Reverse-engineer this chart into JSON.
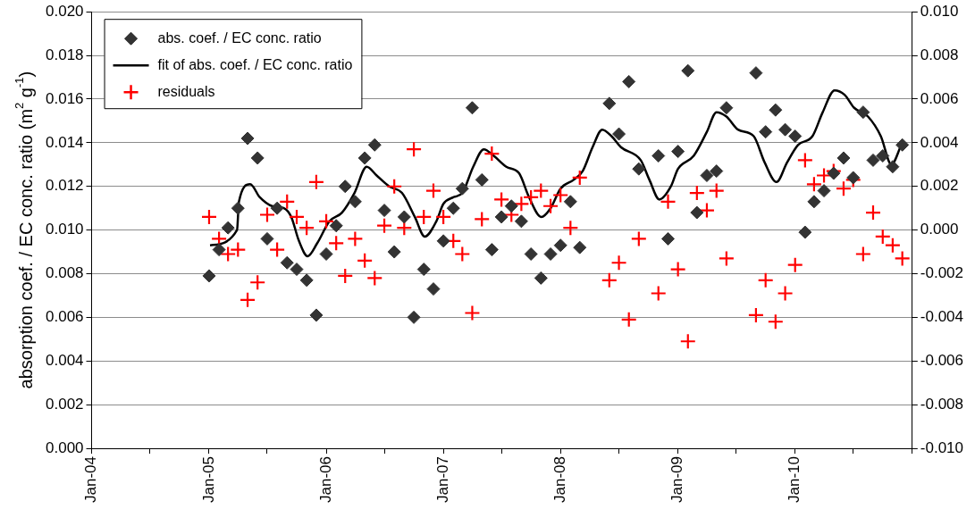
{
  "chart_data": {
    "type": "scatter",
    "ylabel": "absorption coef. / EC conc. ratio (m$^{2}$ g$^{-1}$)",
    "grid": "y",
    "legend": "top left",
    "xlim": [
      "2004-01",
      "2011-01"
    ],
    "xticks": [
      {
        "value": "2004-01",
        "label": "Jan-04"
      },
      {
        "value": "2004-07",
        "label": null
      },
      {
        "value": "2005-01",
        "label": "Jan-05"
      },
      {
        "value": "2005-07",
        "label": null
      },
      {
        "value": "2006-01",
        "label": "Jan-06"
      },
      {
        "value": "2006-07",
        "label": null
      },
      {
        "value": "2007-01",
        "label": "Jan-07"
      },
      {
        "value": "2007-07",
        "label": null
      },
      {
        "value": "2008-01",
        "label": "Jan-08"
      },
      {
        "value": "2008-07",
        "label": null
      },
      {
        "value": "2009-01",
        "label": "Jan-09"
      },
      {
        "value": "2009-07",
        "label": null
      },
      {
        "value": "2010-01",
        "label": "Jan-10"
      },
      {
        "value": "2010-07",
        "label": null
      },
      {
        "value": "2011-01",
        "label": null
      }
    ],
    "ylim": [
      0,
      0.02
    ],
    "yticks": [
      {
        "value": 0,
        "label": "0.000"
      },
      {
        "value": 0.002,
        "label": "0.002"
      },
      {
        "value": 0.004,
        "label": "0.004"
      },
      {
        "value": 0.006,
        "label": "0.006"
      },
      {
        "value": 0.008,
        "label": "0.008"
      },
      {
        "value": 0.01,
        "label": "0.010"
      },
      {
        "value": 0.012,
        "label": "0.012"
      },
      {
        "value": 0.014,
        "label": "0.014"
      },
      {
        "value": 0.016,
        "label": "0.016"
      },
      {
        "value": 0.018,
        "label": "0.018"
      },
      {
        "value": 0.02,
        "label": "0.020"
      }
    ],
    "y2lim": [
      -0.01,
      0.01
    ],
    "y2ticks": [
      {
        "value": -0.01,
        "label": "-0.010"
      },
      {
        "value": -0.008,
        "label": "-0.008"
      },
      {
        "value": -0.006,
        "label": "-0.006"
      },
      {
        "value": -0.004,
        "label": "-0.004"
      },
      {
        "value": -0.002,
        "label": "-0.002"
      },
      {
        "value": 0,
        "label": "0.000"
      },
      {
        "value": 0.002,
        "label": "0.002"
      },
      {
        "value": 0.004,
        "label": "0.004"
      },
      {
        "value": 0.006,
        "label": "0.006"
      },
      {
        "value": 0.008,
        "label": "0.008"
      },
      {
        "value": 0.01,
        "label": "0.010"
      }
    ],
    "x": [
      "2005-01",
      "2005-02",
      "2005-03",
      "2005-04",
      "2005-05",
      "2005-06",
      "2005-07",
      "2005-08",
      "2005-09",
      "2005-10",
      "2005-11",
      "2005-12",
      "2006-01",
      "2006-02",
      "2006-03",
      "2006-04",
      "2006-05",
      "2006-06",
      "2006-07",
      "2006-08",
      "2006-09",
      "2006-10",
      "2006-11",
      "2006-12",
      "2007-01",
      "2007-02",
      "2007-03",
      "2007-04",
      "2007-05",
      "2007-06",
      "2007-07",
      "2007-08",
      "2007-09",
      "2007-10",
      "2007-11",
      "2007-12",
      "2008-01",
      "2008-02",
      "2008-03",
      "2008-06",
      "2008-07",
      "2008-08",
      "2008-09",
      "2008-11",
      "2008-12",
      "2009-01",
      "2009-02",
      "2009-03",
      "2009-04",
      "2009-05",
      "2009-06",
      "2009-09",
      "2009-10",
      "2009-11",
      "2009-12",
      "2010-01",
      "2010-02",
      "2010-03",
      "2010-04",
      "2010-05",
      "2010-06",
      "2010-07",
      "2010-08",
      "2010-09",
      "2010-10",
      "2010-11",
      "2010-12"
    ],
    "series": [
      {
        "name": "abs. coef. / EC conc. ratio",
        "type": "scatter",
        "marker": "diamond",
        "color": "#333333",
        "values": [
          0.0079,
          0.0091,
          0.0101,
          0.011,
          0.0142,
          0.0133,
          0.0096,
          0.011,
          0.0085,
          0.0082,
          0.0077,
          0.0061,
          0.0089,
          0.0102,
          0.012,
          0.0113,
          0.0133,
          0.0139,
          0.0109,
          0.009,
          0.0106,
          0.006,
          0.0082,
          0.0073,
          0.0095,
          0.011,
          0.0119,
          0.0156,
          0.0123,
          0.0091,
          0.0106,
          0.0111,
          0.0104,
          0.0089,
          0.0078,
          0.0089,
          0.0093,
          0.0113,
          0.0092,
          0.0158,
          0.0144,
          0.0168,
          0.0128,
          0.0134,
          0.0096,
          0.0136,
          0.0173,
          0.0108,
          0.0125,
          0.0127,
          0.0156,
          0.0172,
          0.0145,
          0.0155,
          0.0146,
          0.0143,
          0.0099,
          0.0113,
          0.0118,
          0.0126,
          0.0133,
          0.0124,
          0.0154,
          0.0132,
          0.0134,
          0.0129,
          0.0139
        ]
      },
      {
        "name": "fit of abs. coef. / EC conc. ratio",
        "type": "line",
        "marker": "none",
        "line_style": "solid",
        "color": "#000000",
        "x": [
          "2005-01-04",
          "2005-03-29",
          "2005-04-04",
          "2005-05-09",
          "2005-06-08",
          "2005-07-16",
          "2005-08-22",
          "2005-09-14",
          "2005-10-08",
          "2005-11-04",
          "2005-12-04",
          "2006-01-11",
          "2006-02-19",
          "2006-03-30",
          "2006-05-07",
          "2006-06-07",
          "2006-07-16",
          "2006-08-25",
          "2006-10-04",
          "2006-11-04",
          "2006-12-10",
          "2007-01-01",
          "2007-02-01",
          "2007-03-01",
          "2007-04-04",
          "2007-05-07",
          "2007-06-07",
          "2007-07-16",
          "2007-08-25",
          "2007-09-25",
          "2007-11-02",
          "2007-12-01",
          "2008-01-01",
          "2008-02-11",
          "2008-03-10",
          "2008-04-10",
          "2008-05-10",
          "2008-06-08",
          "2008-07-07",
          "2008-09-07",
          "2008-10-04",
          "2008-11-04",
          "2008-12-10",
          "2009-01-01",
          "2009-02-19",
          "2009-04-01",
          "2009-05-01",
          "2009-06-01",
          "2009-07-07",
          "2009-08-25",
          "2009-09-28",
          "2009-11-04",
          "2009-12-07",
          "2010-01-10",
          "2010-02-24",
          "2010-03-28",
          "2010-05-04",
          "2010-06-04",
          "2010-07-04",
          "2010-08-16",
          "2010-09-25",
          "2010-10-28",
          "2010-11-28"
        ],
        "values": [
          0.0093,
          0.01,
          0.0113,
          0.0121,
          0.0115,
          0.0111,
          0.011,
          0.0106,
          0.0095,
          0.0088,
          0.0094,
          0.0104,
          0.0108,
          0.0117,
          0.0129,
          0.0125,
          0.012,
          0.0117,
          0.0106,
          0.0097,
          0.0104,
          0.0112,
          0.0115,
          0.0117,
          0.0129,
          0.0137,
          0.0134,
          0.0129,
          0.0126,
          0.0115,
          0.0106,
          0.011,
          0.0119,
          0.0123,
          0.0127,
          0.0138,
          0.0146,
          0.0143,
          0.0138,
          0.0132,
          0.0123,
          0.0114,
          0.012,
          0.0128,
          0.0134,
          0.0145,
          0.0154,
          0.0152,
          0.0146,
          0.0143,
          0.0131,
          0.0122,
          0.0131,
          0.0139,
          0.0143,
          0.0154,
          0.0164,
          0.0162,
          0.0156,
          0.0152,
          0.0143,
          0.013,
          0.0139
        ]
      },
      {
        "name": "residuals",
        "type": "scatter",
        "marker": "cross",
        "axis": "y2",
        "color": "#ff0000",
        "values": [
          0.0006,
          -0.0004,
          -0.0011,
          -0.0009,
          -0.0032,
          -0.0024,
          0.0007,
          -0.0009,
          0.0013,
          0.0006,
          0.0001,
          0.0022,
          0.0004,
          -0.0006,
          -0.0021,
          -0.0004,
          -0.0014,
          -0.0022,
          0.0002,
          0.002,
          0.0001,
          0.0037,
          0.0006,
          0.0018,
          0.0006,
          -0.0005,
          -0.0011,
          -0.0038,
          0.0005,
          0.0035,
          0.0014,
          0.0007,
          0.0012,
          0.0015,
          0.0018,
          0.0011,
          0.0016,
          0.0001,
          0.0024,
          -0.0023,
          -0.0015,
          -0.0041,
          -0.0004,
          -0.0029,
          0.0013,
          -0.0018,
          -0.0051,
          0.0017,
          0.0009,
          0.0018,
          -0.0013,
          -0.0039,
          -0.0023,
          -0.0042,
          -0.0029,
          -0.0016,
          0.0032,
          0.0021,
          0.0025,
          0.0027,
          0.0019,
          0.0023,
          -0.0011,
          0.0008,
          -0.0003,
          -0.0007,
          -0.0013
        ]
      }
    ]
  }
}
